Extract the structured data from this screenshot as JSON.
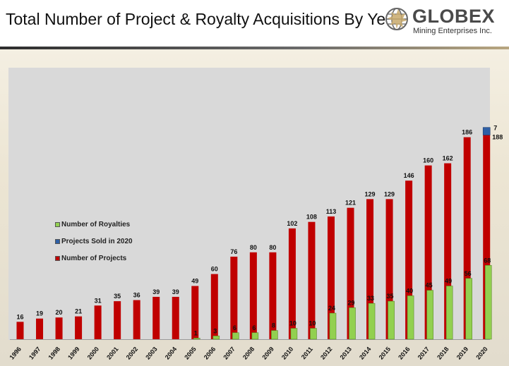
{
  "header": {
    "title": "Total Number of Project & Royalty Acquisitions By Year",
    "logo_name": "GLOBEX",
    "logo_sub": "Mining Enterprises Inc."
  },
  "colors": {
    "projects": "#c00000",
    "royalties": "#92d050",
    "sold": "#2e5fa6",
    "plot_bg": "#d9d9d9"
  },
  "chart_data": {
    "type": "bar",
    "categories": [
      "1996",
      "1997",
      "1998",
      "1999",
      "2000",
      "2001",
      "2002",
      "2003",
      "2004",
      "2005",
      "2006",
      "2007",
      "2008",
      "2009",
      "2010",
      "2011",
      "2012",
      "2013",
      "2014",
      "2015",
      "2016",
      "2017",
      "2018",
      "2019",
      "2020"
    ],
    "series": [
      {
        "name": "Number of Projects",
        "values": [
          16,
          19,
          20,
          21,
          31,
          35,
          36,
          39,
          39,
          49,
          60,
          76,
          80,
          80,
          102,
          108,
          113,
          121,
          129,
          129,
          146,
          160,
          162,
          186,
          188
        ]
      },
      {
        "name": "Number of Royalties",
        "values": [
          0,
          0,
          0,
          0,
          0,
          0,
          0,
          0,
          0,
          1,
          3,
          6,
          6,
          8,
          10,
          10,
          24,
          29,
          33,
          35,
          40,
          45,
          49,
          56,
          68
        ]
      },
      {
        "name": "Projects Sold in 2020",
        "values": [
          0,
          0,
          0,
          0,
          0,
          0,
          0,
          0,
          0,
          0,
          0,
          0,
          0,
          0,
          0,
          0,
          0,
          0,
          0,
          0,
          0,
          0,
          0,
          0,
          7
        ]
      }
    ],
    "ylim": [
      0,
      200
    ],
    "legend_order": [
      "Number of Royalties",
      "Projects Sold in 2020",
      "Number of Projects"
    ],
    "legend_position": "middle-left",
    "grid": false
  }
}
